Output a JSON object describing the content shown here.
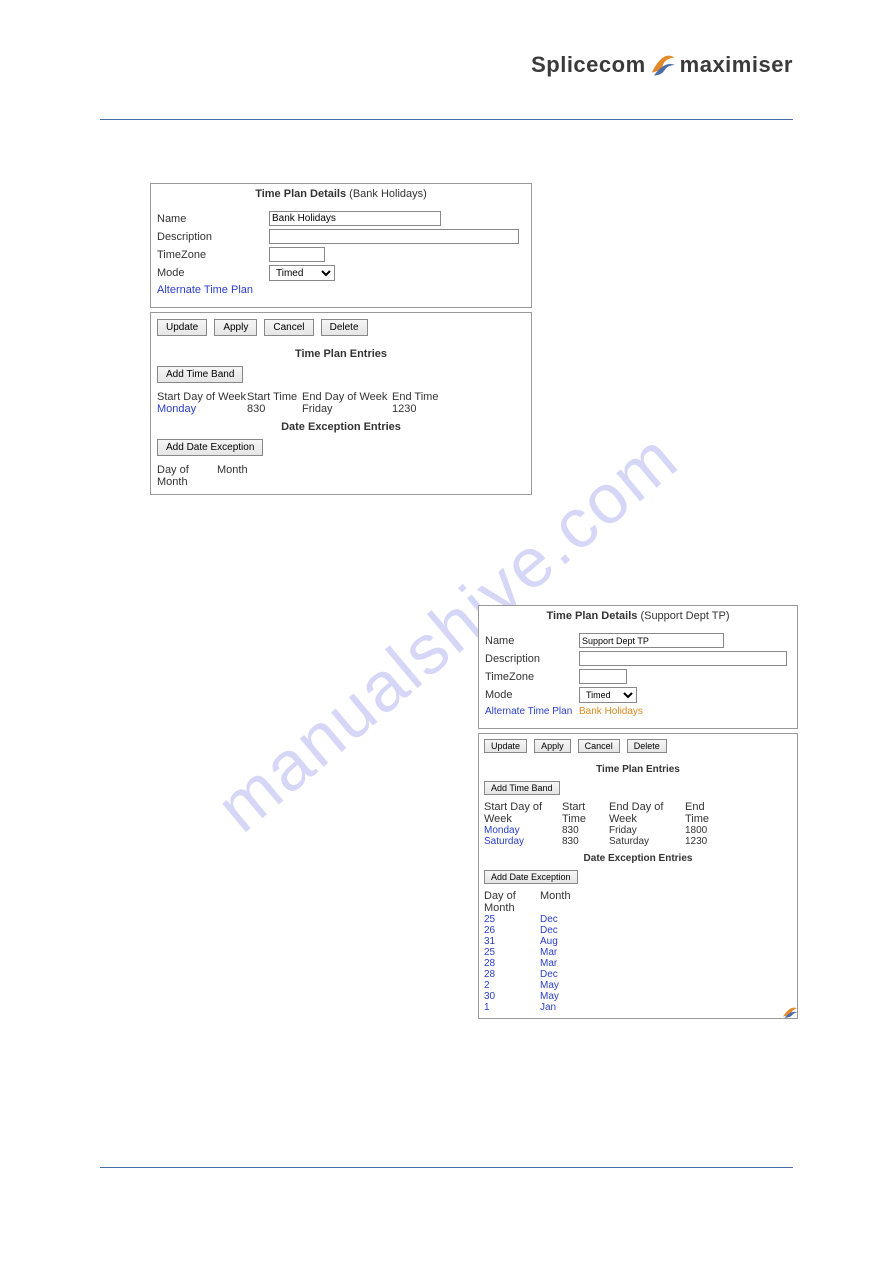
{
  "brand": {
    "part1": "Splicecom",
    "part2": "maximiser"
  },
  "watermark": "manualshive.com",
  "panel1": {
    "title_bold": "Time Plan Details",
    "title_paren": "(Bank Holidays)",
    "labels": {
      "name": "Name",
      "description": "Description",
      "timezone": "TimeZone",
      "mode": "Mode",
      "alt": "Alternate Time Plan"
    },
    "values": {
      "name": "Bank Holidays",
      "mode": "Timed"
    },
    "buttons": {
      "update": "Update",
      "apply": "Apply",
      "cancel": "Cancel",
      "delete": "Delete",
      "add_band": "Add Time Band",
      "add_date": "Add Date Exception"
    },
    "section_entries": "Time Plan Entries",
    "section_dates": "Date Exception Entries",
    "cols": {
      "c1": "Start Day of Week",
      "c2": "Start Time",
      "c3": "End Day of Week",
      "c4": "End Time"
    },
    "rows": [
      {
        "sd": "Monday",
        "st": "830",
        "ed": "Friday",
        "et": "1230"
      }
    ],
    "date_cols": {
      "d1": "Day of Month",
      "d2": "Month"
    }
  },
  "panel2": {
    "title_bold": "Time Plan Details",
    "title_paren": "(Support Dept TP)",
    "labels": {
      "name": "Name",
      "description": "Description",
      "timezone": "TimeZone",
      "mode": "Mode",
      "alt": "Alternate Time Plan"
    },
    "values": {
      "name": "Support Dept TP",
      "mode": "Timed",
      "alt": "Bank Holidays"
    },
    "buttons": {
      "update": "Update",
      "apply": "Apply",
      "cancel": "Cancel",
      "delete": "Delete",
      "add_band": "Add Time Band",
      "add_date": "Add Date Exception"
    },
    "section_entries": "Time Plan Entries",
    "section_dates": "Date Exception Entries",
    "cols": {
      "c1": "Start Day of Week",
      "c2": "Start Time",
      "c3": "End Day of Week",
      "c4": "End Time"
    },
    "rows": [
      {
        "sd": "Monday",
        "st": "830",
        "ed": "Friday",
        "et": "1800"
      },
      {
        "sd": "Saturday",
        "st": "830",
        "ed": "Saturday",
        "et": "1230"
      }
    ],
    "date_cols": {
      "d1": "Day of Month",
      "d2": "Month"
    },
    "date_rows": [
      {
        "d": "25",
        "m": "Dec"
      },
      {
        "d": "26",
        "m": "Dec"
      },
      {
        "d": "31",
        "m": "Aug"
      },
      {
        "d": "25",
        "m": "Mar"
      },
      {
        "d": "28",
        "m": "Mar"
      },
      {
        "d": "28",
        "m": "Dec"
      },
      {
        "d": "2",
        "m": "May"
      },
      {
        "d": "30",
        "m": "May"
      },
      {
        "d": "1",
        "m": "Jan"
      }
    ]
  },
  "colors": {
    "rule": "#4a6ea9",
    "link": "#2a3fc7",
    "link_orange": "#d98a1f",
    "border": "#999999",
    "watermark": "rgba(120,120,230,0.30)"
  }
}
